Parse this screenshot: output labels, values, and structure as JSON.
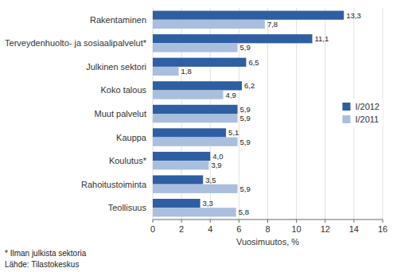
{
  "chart_data": {
    "type": "bar",
    "orientation": "horizontal",
    "categories": [
      "Rakentaminen",
      "Terveydenhuolto- ja sosiaalipalvelut*",
      "Julkinen sektori",
      "Koko talous",
      "Muut palvelut",
      "Kauppa",
      "Koulutus*",
      "Rahoitustoiminta",
      "Teollisuus"
    ],
    "series": [
      {
        "name": "I/2012",
        "color": "#2E5FA3",
        "values": [
          13.3,
          11.1,
          6.5,
          6.2,
          5.9,
          5.1,
          4.0,
          3.5,
          3.3
        ],
        "value_labels": [
          "13,3",
          "11,1",
          "6,5",
          "6,2",
          "5,9",
          "5,1",
          "4,0",
          "3,5",
          "3,3"
        ]
      },
      {
        "name": "I/2011",
        "color": "#AABFDD",
        "values": [
          7.8,
          5.9,
          1.8,
          4.9,
          5.9,
          5.9,
          3.9,
          5.9,
          5.8
        ],
        "value_labels": [
          "7,8",
          "5,9",
          "1,8",
          "4,9",
          "5,9",
          "5,9",
          "3,9",
          "5,9",
          "5,8"
        ]
      }
    ],
    "xlabel": "Vuosimuutos, %",
    "xlim": [
      0,
      16
    ],
    "xticks": [
      0,
      2,
      4,
      6,
      8,
      10,
      12,
      14,
      16
    ],
    "grid": true,
    "data_labels": true,
    "legend": "right",
    "annotations": [
      "* Ilman julkista sektoria",
      "Lähde: Tilastokeskus"
    ]
  }
}
